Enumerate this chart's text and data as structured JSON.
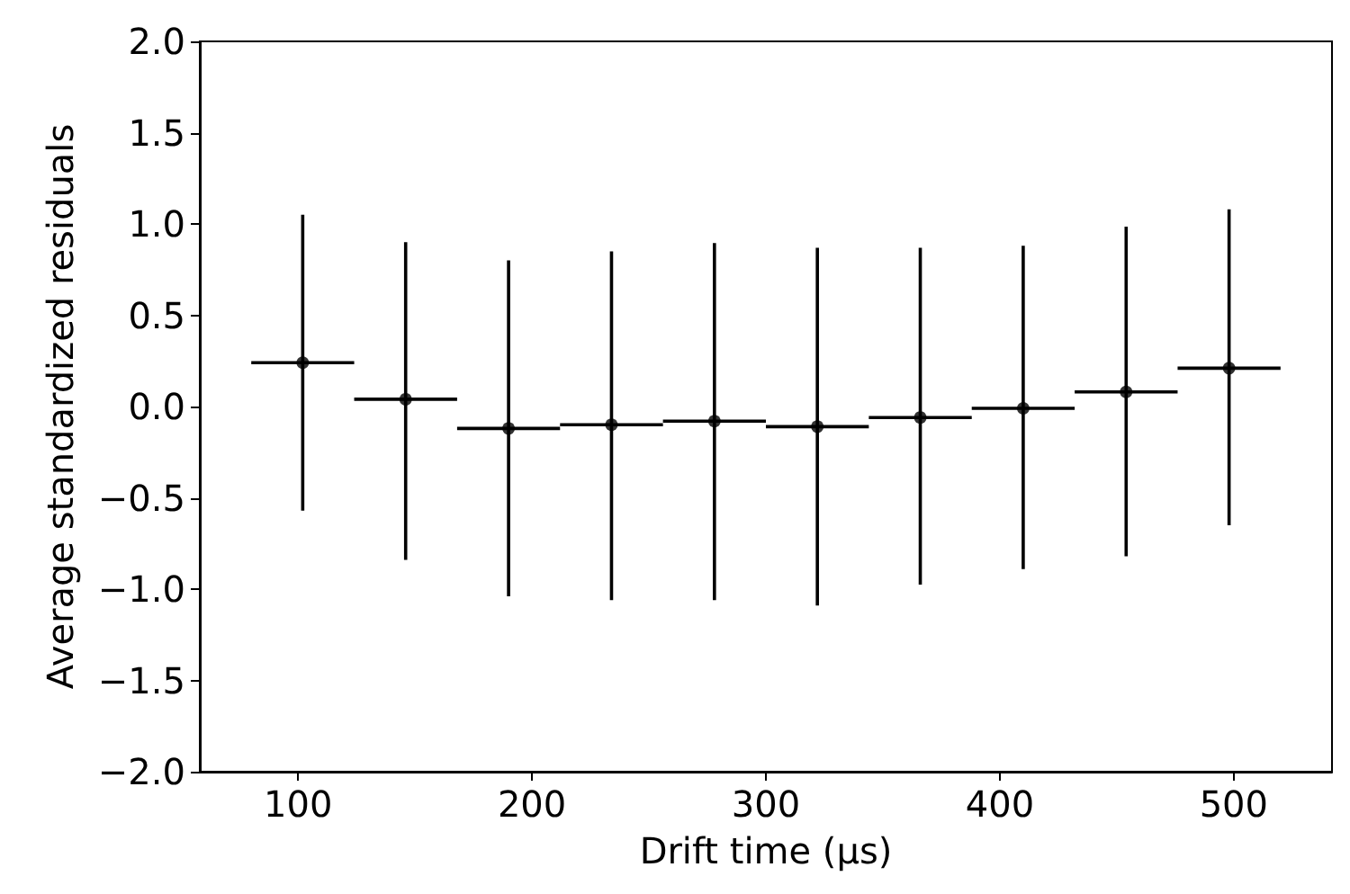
{
  "chart_data": {
    "type": "scatter",
    "xlabel": "Drift time (μs)",
    "ylabel": "Average standardized residuals",
    "x": [
      102,
      146,
      190,
      234,
      278,
      322,
      366,
      410,
      454,
      498
    ],
    "series": [
      {
        "color": "#000000",
        "values": [
          0.24,
          0.04,
          -0.12,
          -0.1,
          -0.08,
          -0.11,
          -0.06,
          -0.01,
          0.08,
          0.21
        ],
        "errors": [
          [
            -0.57,
            1.05
          ],
          [
            -0.84,
            0.9
          ],
          [
            -1.04,
            0.8
          ],
          [
            -1.06,
            0.85
          ],
          [
            -1.06,
            0.895
          ],
          [
            -1.09,
            0.87
          ],
          [
            -0.975,
            0.87
          ],
          [
            -0.89,
            0.88
          ],
          [
            -0.82,
            0.985
          ],
          [
            -0.65,
            1.08
          ]
        ],
        "xerrors": [
          22,
          22,
          22,
          22,
          22,
          22,
          22,
          22,
          22,
          22
        ]
      }
    ],
    "xlim": [
      58,
      542
    ],
    "xticks": [
      100,
      200,
      300,
      400,
      500
    ],
    "ylim": [
      -2,
      2
    ],
    "yticks": [
      {
        "value": -2,
        "label": "−2.0"
      },
      {
        "value": -1.5,
        "label": "−1.5"
      },
      {
        "value": -1,
        "label": "−1.0"
      },
      {
        "value": -0.5,
        "label": "−0.5"
      },
      {
        "value": 0,
        "label": "0.0"
      },
      {
        "value": 0.5,
        "label": "0.5"
      },
      {
        "value": 1,
        "label": "1.0"
      },
      {
        "value": 1.5,
        "label": "1.5"
      },
      {
        "value": 2,
        "label": "2.0"
      }
    ],
    "grid": false,
    "marker": "circle"
  }
}
